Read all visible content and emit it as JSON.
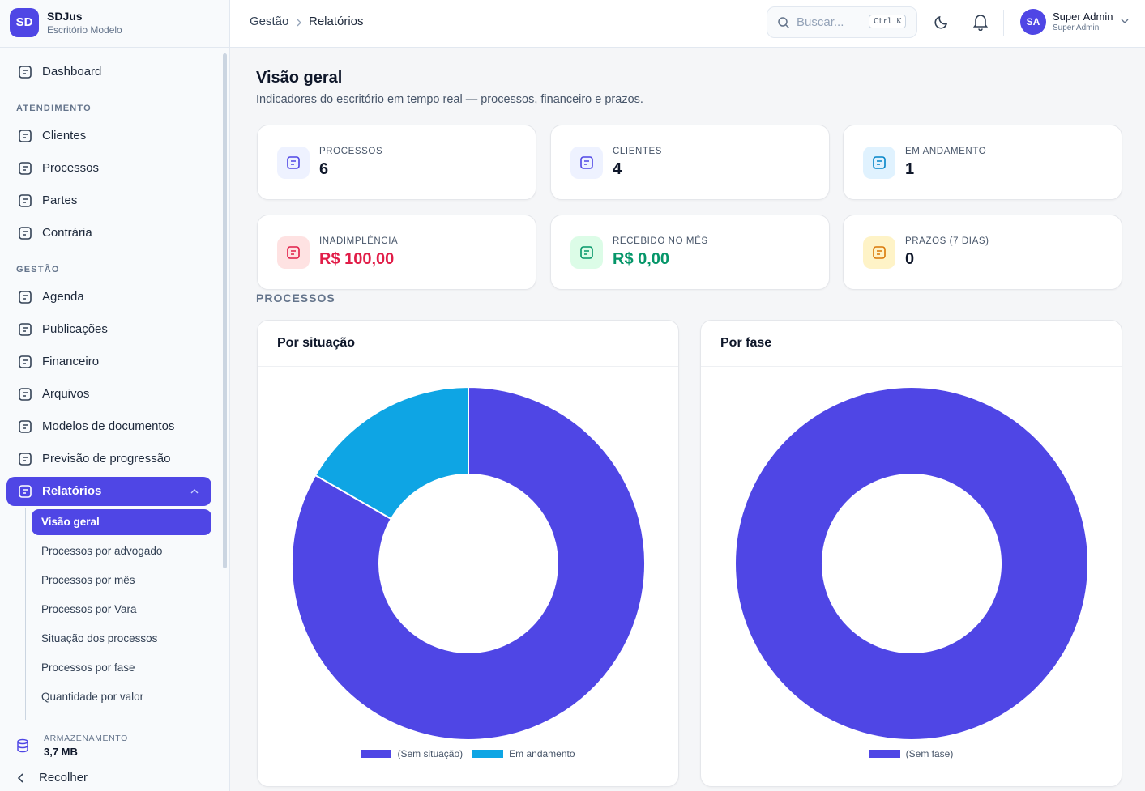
{
  "brand": {
    "logo": "SD",
    "name": "SDJus",
    "subtitle": "Escritório Modelo"
  },
  "sidebar": {
    "top": "Dashboard",
    "groups": [
      {
        "heading": "ATENDIMENTO",
        "items": [
          "Clientes",
          "Processos",
          "Partes",
          "Contrária"
        ]
      },
      {
        "heading": "GESTÃO",
        "items": [
          "Agenda",
          "Publicações",
          "Financeiro",
          "Arquivos",
          "Modelos de documentos",
          "Previsão de progressão",
          "Relatórios"
        ]
      }
    ],
    "submenu": [
      "Visão geral",
      "Processos por advogado",
      "Processos por mês",
      "Processos por Vara",
      "Situação dos processos",
      "Processos por fase",
      "Quantidade por valor"
    ],
    "storage": {
      "label": "ARMAZENAMENTO",
      "value": "3,7 MB"
    },
    "collapse": "Recolher"
  },
  "header": {
    "breadcrumb": [
      "Gestão",
      "Relatórios"
    ],
    "search": {
      "placeholder": "Buscar...",
      "shortcut": "Ctrl K"
    },
    "user": {
      "initials": "SA",
      "name": "Super Admin",
      "role": "Super Admin"
    }
  },
  "page": {
    "title": "Visão geral",
    "subtitle": "Indicadores do escritório em tempo real — processos, financeiro e prazos.",
    "stats": [
      {
        "label": "PROCESSOS",
        "value": 6
      },
      {
        "label": "CLIENTES",
        "value": 4
      },
      {
        "label": "EM ANDAMENTO",
        "value": 1
      },
      {
        "label": "INADIMPLÊNCIA",
        "value": "R$ 100,00"
      },
      {
        "label": "RECEBIDO NO MÊS",
        "value": "R$ 0,00"
      },
      {
        "label": "PRAZOS (7 DIAS)",
        "value": 0
      }
    ],
    "section": "PROCESSOS"
  },
  "chart_data": [
    {
      "type": "donut",
      "title": "Por situação",
      "categories": [
        "(Sem situação)",
        "Em andamento"
      ],
      "values": [
        5,
        1
      ],
      "colors": [
        "#4f46e5",
        "#0ea5e4"
      ]
    },
    {
      "type": "donut",
      "title": "Por fase",
      "categories": [
        "(Sem fase)"
      ],
      "values": [
        6
      ],
      "colors": [
        "#4f46e5"
      ]
    }
  ]
}
